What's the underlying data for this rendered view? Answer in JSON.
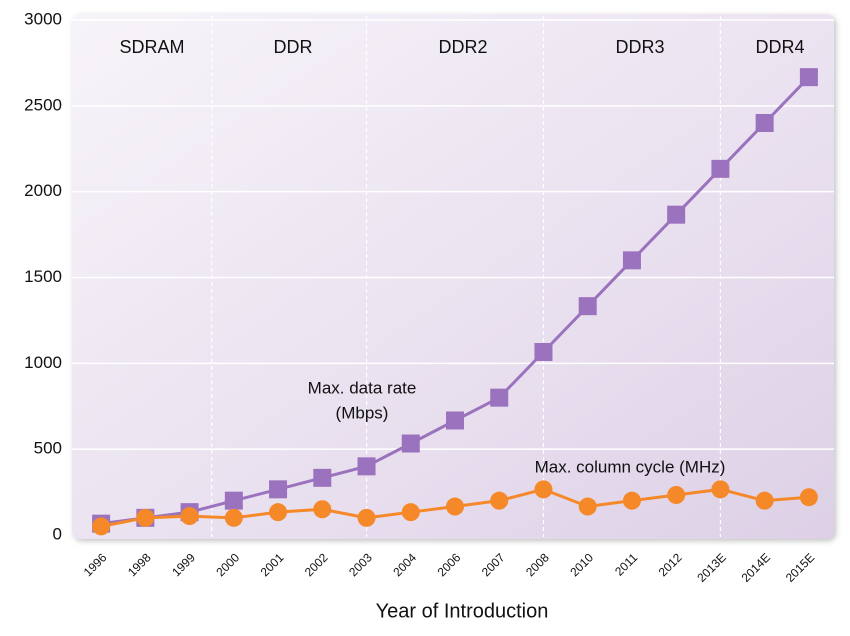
{
  "chart_data": {
    "type": "line",
    "categories": [
      "1996",
      "1998",
      "1999",
      "2000",
      "2001",
      "2002",
      "2003",
      "2004",
      "2006",
      "2007",
      "2008",
      "2010",
      "2011",
      "2012",
      "2013E",
      "2014E",
      "2015E"
    ],
    "series": [
      {
        "name": "Max. data rate (Mbps)",
        "color": "#9b72be",
        "marker": "square",
        "values": [
          66,
          100,
          133,
          200,
          266,
          333,
          400,
          533,
          667,
          800,
          1066,
          1333,
          1600,
          1866,
          2133,
          2400,
          2667
        ]
      },
      {
        "name": "Max. column cycle (MHz)",
        "color": "#f5892a",
        "marker": "circle",
        "values": [
          50,
          100,
          110,
          100,
          133,
          150,
          100,
          133,
          166,
          200,
          266,
          166,
          200,
          233,
          266,
          200,
          220
        ]
      }
    ],
    "annotations": [
      "Max. data rate",
      "(Mbps)",
      "Max. column cycle (MHz)"
    ],
    "eras": [
      "SDRAM",
      "DDR",
      "DDR2",
      "DDR3",
      "DDR4"
    ],
    "xlabel": "Year of Introduction",
    "ylim": [
      0,
      3000
    ],
    "yticks": [
      0,
      500,
      1000,
      1500,
      2000,
      2500,
      3000
    ],
    "grid": true
  }
}
